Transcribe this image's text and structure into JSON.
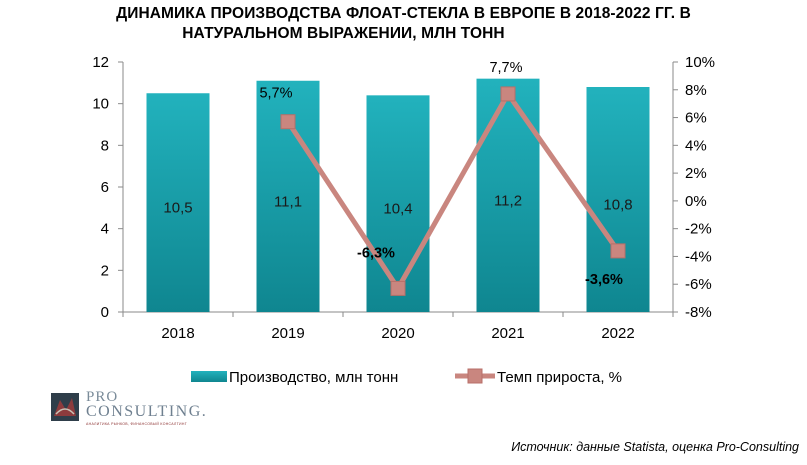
{
  "title_line1": "ДИНАМИКА ПРОИЗВОДСТВА ФЛОАТ-СТЕКЛА В ЕВРОПЕ В 2018-2022 ГГ. В",
  "title_line2": "НАТУРАЛЬНОМ ВЫРАЖЕНИИ, МЛН ТОНН",
  "source": "Источник: данные Statista, оценка Pro-Consulting",
  "logo": {
    "line1": "PRO",
    "line2": "CONSULTING.",
    "tagline": "АНАЛИТИКА РЫНКОВ, ФИНАНСОВЫЙ КОНСАЛТИНГ"
  },
  "colors": {
    "bar": "#1aa5b1",
    "bar_dark": "#0d7d87",
    "line": "#c9867f",
    "marker": "#c9867f"
  },
  "chart_data": {
    "type": "bar",
    "categories": [
      "2018",
      "2019",
      "2020",
      "2021",
      "2022"
    ],
    "series": [
      {
        "name": "Производство, млн тонн",
        "type": "bar",
        "axis": "left",
        "values": [
          10.5,
          11.1,
          10.4,
          11.2,
          10.8
        ],
        "labels": [
          "10,5",
          "11,1",
          "10,4",
          "11,2",
          "10,8"
        ]
      },
      {
        "name": "Темп прироста, %",
        "type": "line",
        "axis": "right",
        "values": [
          null,
          5.7,
          -6.3,
          7.7,
          -3.6
        ],
        "labels": [
          "",
          "5,7%",
          "-6,3%",
          "7,7%",
          "-3,6%"
        ]
      }
    ],
    "y_left": {
      "range": [
        0,
        12
      ],
      "ticks": [
        "0",
        "2",
        "4",
        "6",
        "8",
        "10",
        "12"
      ]
    },
    "y_right": {
      "range": [
        -8,
        10
      ],
      "ticks": [
        "-8%",
        "-6%",
        "-4%",
        "-2%",
        "0%",
        "2%",
        "4%",
        "6%",
        "8%",
        "10%"
      ]
    },
    "grid": false,
    "legend": "bottom"
  }
}
